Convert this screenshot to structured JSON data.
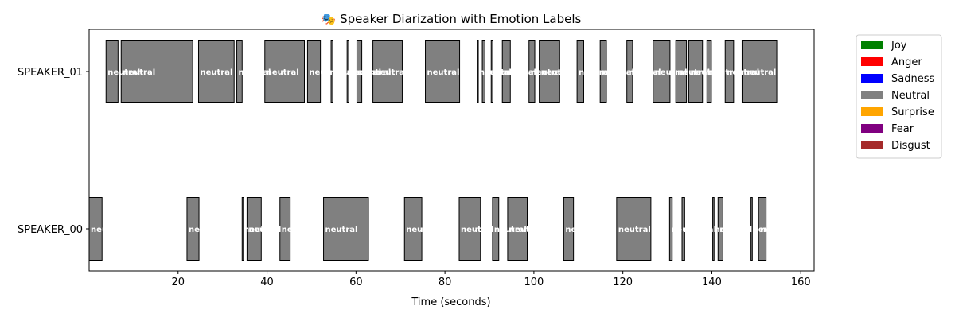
{
  "chart_data": {
    "type": "timeline",
    "title": "🎭 Speaker Diarization with Emotion Labels",
    "xlabel": "Time (seconds)",
    "ylabel": "",
    "xlim": [
      0,
      163
    ],
    "xticks": [
      20,
      40,
      60,
      80,
      100,
      120,
      140,
      160
    ],
    "grid": false,
    "legend_position": "outside-right-top",
    "speakers": [
      "SPEAKER_01",
      "SPEAKER_00"
    ],
    "legend": [
      {
        "label": "Joy",
        "color": "#008000"
      },
      {
        "label": "Anger",
        "color": "#ff0000"
      },
      {
        "label": "Sadness",
        "color": "#0000ff"
      },
      {
        "label": "Neutral",
        "color": "#808080"
      },
      {
        "label": "Surprise",
        "color": "#ffa500"
      },
      {
        "label": "Fear",
        "color": "#800080"
      },
      {
        "label": "Disgust",
        "color": "#a52a2a"
      }
    ],
    "segments": [
      {
        "speaker": "SPEAKER_01",
        "start": 3.8,
        "end": 6.5,
        "emotion": "neutral"
      },
      {
        "speaker": "SPEAKER_01",
        "start": 7.2,
        "end": 23.3,
        "emotion": "neutral"
      },
      {
        "speaker": "SPEAKER_01",
        "start": 24.6,
        "end": 32.6,
        "emotion": "neutral"
      },
      {
        "speaker": "SPEAKER_01",
        "start": 33.2,
        "end": 34.4,
        "emotion": "neutral"
      },
      {
        "speaker": "SPEAKER_01",
        "start": 39.5,
        "end": 48.4,
        "emotion": "neutral"
      },
      {
        "speaker": "SPEAKER_01",
        "start": 49.1,
        "end": 52.0,
        "emotion": "neutral"
      },
      {
        "speaker": "SPEAKER_01",
        "start": 54.4,
        "end": 54.8,
        "emotion": "neutral"
      },
      {
        "speaker": "SPEAKER_01",
        "start": 58.0,
        "end": 58.4,
        "emotion": "neutral"
      },
      {
        "speaker": "SPEAKER_01",
        "start": 60.2,
        "end": 61.3,
        "emotion": "neutral"
      },
      {
        "speaker": "SPEAKER_01",
        "start": 63.8,
        "end": 70.4,
        "emotion": "neutral"
      },
      {
        "speaker": "SPEAKER_01",
        "start": 75.6,
        "end": 83.3,
        "emotion": "neutral"
      },
      {
        "speaker": "SPEAKER_01",
        "start": 87.3,
        "end": 87.5,
        "emotion": "neutral"
      },
      {
        "speaker": "SPEAKER_01",
        "start": 88.4,
        "end": 89.0,
        "emotion": "neutral"
      },
      {
        "speaker": "SPEAKER_01",
        "start": 90.4,
        "end": 90.8,
        "emotion": "neutral"
      },
      {
        "speaker": "SPEAKER_01",
        "start": 92.9,
        "end": 94.7,
        "emotion": "neutral"
      },
      {
        "speaker": "SPEAKER_01",
        "start": 98.9,
        "end": 100.2,
        "emotion": "neutral"
      },
      {
        "speaker": "SPEAKER_01",
        "start": 101.2,
        "end": 105.8,
        "emotion": "neutral"
      },
      {
        "speaker": "SPEAKER_01",
        "start": 109.7,
        "end": 111.2,
        "emotion": "neutral"
      },
      {
        "speaker": "SPEAKER_01",
        "start": 114.9,
        "end": 116.3,
        "emotion": "neutral"
      },
      {
        "speaker": "SPEAKER_01",
        "start": 120.9,
        "end": 122.2,
        "emotion": "neutral"
      },
      {
        "speaker": "SPEAKER_01",
        "start": 126.8,
        "end": 130.6,
        "emotion": "neutral"
      },
      {
        "speaker": "SPEAKER_01",
        "start": 131.9,
        "end": 134.3,
        "emotion": "neutral"
      },
      {
        "speaker": "SPEAKER_01",
        "start": 134.8,
        "end": 137.9,
        "emotion": "neutral"
      },
      {
        "speaker": "SPEAKER_01",
        "start": 138.9,
        "end": 139.9,
        "emotion": "neutral"
      },
      {
        "speaker": "SPEAKER_01",
        "start": 143.0,
        "end": 144.9,
        "emotion": "neutral"
      },
      {
        "speaker": "SPEAKER_01",
        "start": 146.8,
        "end": 154.6,
        "emotion": "neutral"
      },
      {
        "speaker": "SPEAKER_00",
        "start": 0.0,
        "end": 2.9,
        "emotion": "neutral"
      },
      {
        "speaker": "SPEAKER_00",
        "start": 22.0,
        "end": 24.7,
        "emotion": "neutral"
      },
      {
        "speaker": "SPEAKER_00",
        "start": 34.4,
        "end": 34.7,
        "emotion": "neutral"
      },
      {
        "speaker": "SPEAKER_00",
        "start": 35.5,
        "end": 38.7,
        "emotion": "neutral"
      },
      {
        "speaker": "SPEAKER_00",
        "start": 42.9,
        "end": 45.2,
        "emotion": "neutral"
      },
      {
        "speaker": "SPEAKER_00",
        "start": 52.7,
        "end": 62.8,
        "emotion": "neutral"
      },
      {
        "speaker": "SPEAKER_00",
        "start": 70.9,
        "end": 74.8,
        "emotion": "neutral"
      },
      {
        "speaker": "SPEAKER_00",
        "start": 83.2,
        "end": 88.0,
        "emotion": "neutral"
      },
      {
        "speaker": "SPEAKER_00",
        "start": 90.7,
        "end": 92.1,
        "emotion": "neutral"
      },
      {
        "speaker": "SPEAKER_00",
        "start": 94.1,
        "end": 98.5,
        "emotion": "neutral"
      },
      {
        "speaker": "SPEAKER_00",
        "start": 106.7,
        "end": 108.9,
        "emotion": "neutral"
      },
      {
        "speaker": "SPEAKER_00",
        "start": 118.6,
        "end": 126.3,
        "emotion": "neutral"
      },
      {
        "speaker": "SPEAKER_00",
        "start": 130.5,
        "end": 131.1,
        "emotion": "neutral"
      },
      {
        "speaker": "SPEAKER_00",
        "start": 133.3,
        "end": 133.9,
        "emotion": "neutral"
      },
      {
        "speaker": "SPEAKER_00",
        "start": 140.2,
        "end": 140.5,
        "emotion": "neutral"
      },
      {
        "speaker": "SPEAKER_00",
        "start": 141.4,
        "end": 142.5,
        "emotion": "neutral"
      },
      {
        "speaker": "SPEAKER_00",
        "start": 148.8,
        "end": 149.1,
        "emotion": "neutral"
      },
      {
        "speaker": "SPEAKER_00",
        "start": 150.5,
        "end": 152.2,
        "emotion": "neutral"
      }
    ]
  }
}
